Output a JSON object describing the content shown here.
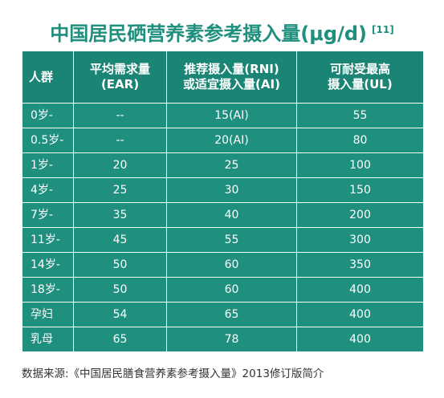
{
  "title": {
    "text": "中国居民硒营养素参考摄入量(μg/d)",
    "ref": "[11]"
  },
  "table": {
    "headers": [
      [
        "人群"
      ],
      [
        "平均需求量",
        "(EAR)"
      ],
      [
        "推荐摄入量(RNI)",
        "或适宜摄入量(AI)"
      ],
      [
        "可耐受最高",
        "摄入量(UL)"
      ]
    ],
    "rows": [
      [
        "0岁-",
        "--",
        "15(AI)",
        "55"
      ],
      [
        "0.5岁-",
        "--",
        "20(AI)",
        "80"
      ],
      [
        "1岁-",
        "20",
        "25",
        "100"
      ],
      [
        "4岁-",
        "25",
        "30",
        "150"
      ],
      [
        "7岁-",
        "35",
        "40",
        "200"
      ],
      [
        "11岁-",
        "45",
        "55",
        "300"
      ],
      [
        "14岁-",
        "50",
        "60",
        "350"
      ],
      [
        "18岁-",
        "50",
        "60",
        "400"
      ],
      [
        "孕妇",
        "54",
        "65",
        "400"
      ],
      [
        "乳母",
        "65",
        "78",
        "400"
      ]
    ]
  },
  "source": "数据来源:《中国居民膳食营养素参考摄入量》2013修订版简介",
  "colors": {
    "table_bg": "#1f8f7e",
    "title": "#1f8f7e",
    "text": "#ffffff"
  }
}
